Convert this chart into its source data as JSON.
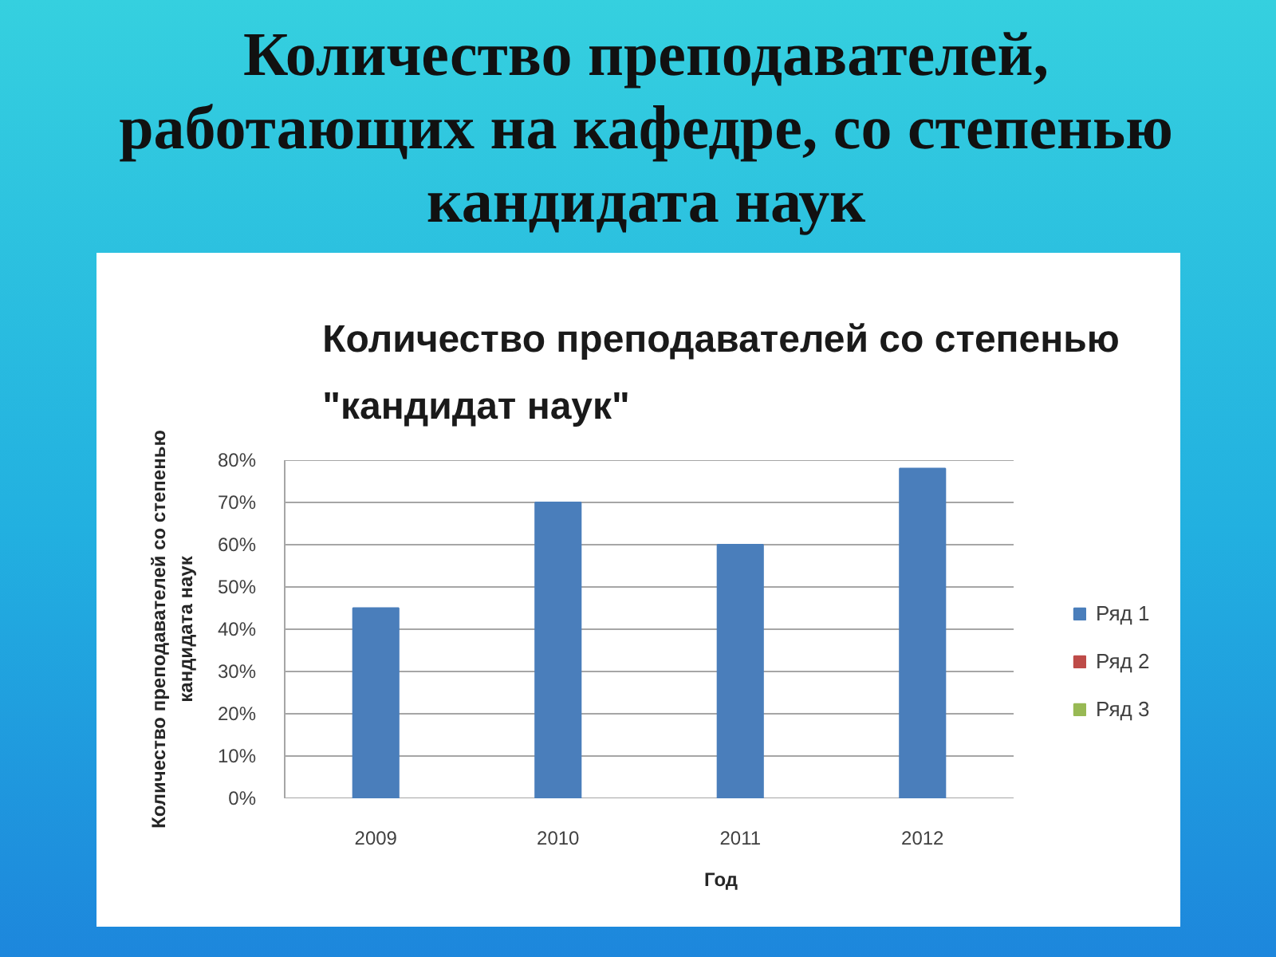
{
  "chart_data": {
    "type": "bar",
    "title": "Количество преподавателей,\nработающих на кафедре, со степенью\nкандидата наук",
    "subtitle": "Количество преподавателей со степенью\n\"кандидат наук\"",
    "xlabel": "Год",
    "ylabel": "Количество преподавателей со степенью\nкандидата наук",
    "categories": [
      "2009",
      "2010",
      "2011",
      "2012"
    ],
    "series": [
      {
        "name": "Ряд 1",
        "color": "#4a7ebb",
        "values": [
          45,
          70,
          60,
          78
        ]
      },
      {
        "name": "Ряд 2",
        "color": "#be4b48",
        "values": [
          null,
          null,
          null,
          null
        ]
      },
      {
        "name": "Ряд 3",
        "color": "#98b954",
        "values": [
          null,
          null,
          null,
          null
        ]
      }
    ],
    "ylim": [
      0,
      80
    ],
    "yticks": [
      {
        "value": 0,
        "label": "0%"
      },
      {
        "value": 10,
        "label": "10%"
      },
      {
        "value": 20,
        "label": "20%"
      },
      {
        "value": 30,
        "label": "30%"
      },
      {
        "value": 40,
        "label": "40%"
      },
      {
        "value": 50,
        "label": "50%"
      },
      {
        "value": 60,
        "label": "60%"
      },
      {
        "value": 70,
        "label": "70%"
      },
      {
        "value": 80,
        "label": "80%"
      }
    ],
    "grid": "y",
    "legend": "right"
  }
}
